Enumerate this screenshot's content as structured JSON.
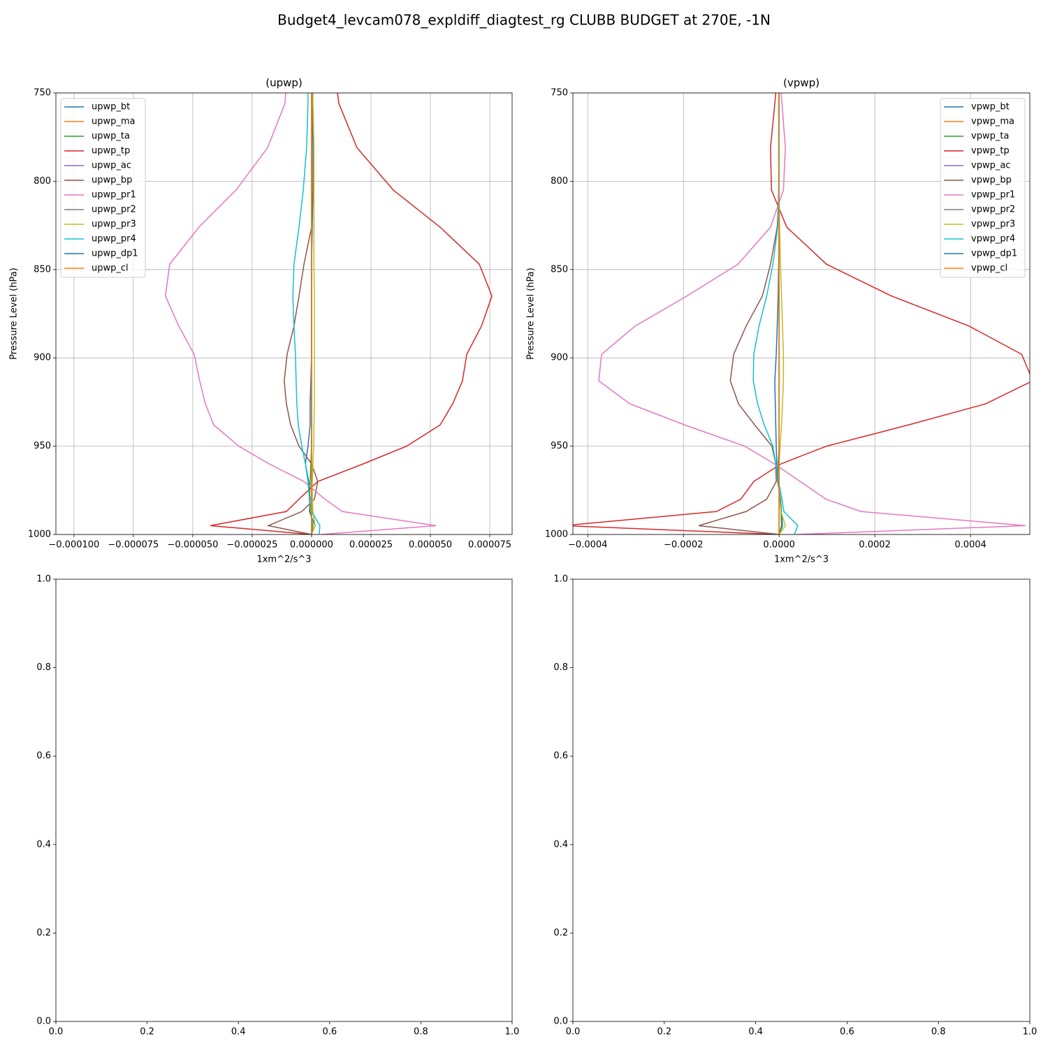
{
  "title": "Budget4_levcam078_expldiff_diagtest_rg CLUBB BUDGET at 270E, -1N",
  "chart_data": [
    {
      "type": "line",
      "title": "(upwp)",
      "xlabel": "1xm^2/s^3",
      "ylabel": "Pressure Level (hPa)",
      "grid": true,
      "legend": "upper left",
      "xlim": [
        -0.0001076,
        8.44e-05
      ],
      "ylim": [
        1000,
        750
      ],
      "xticks": [
        {
          "value": -0.0001,
          "label": "−0.000100"
        },
        {
          "value": -7.5e-05,
          "label": "−0.000075"
        },
        {
          "value": -5e-05,
          "label": "−0.000050"
        },
        {
          "value": -2.5e-05,
          "label": "−0.000025"
        },
        {
          "value": 0,
          "label": "0.000000"
        },
        {
          "value": 2.5e-05,
          "label": "0.000025"
        },
        {
          "value": 5e-05,
          "label": "0.000050"
        },
        {
          "value": 7.5e-05,
          "label": "0.000075"
        }
      ],
      "yticks": [
        750,
        800,
        850,
        900,
        950,
        1000
      ],
      "y": [
        750,
        756,
        781,
        805,
        826,
        847,
        865,
        882,
        898,
        913,
        926,
        938,
        950,
        960,
        970,
        980,
        987,
        995,
        1000
      ],
      "series": [
        {
          "name": "upwp_bt",
          "color": "#1f77b4",
          "values": [
            3e-07,
            3e-07,
            6e-07,
            6e-07,
            3e-07,
            0,
            0,
            0,
            0,
            -3e-07,
            -6e-07,
            -6e-07,
            -1.5e-06,
            -2.6e-06,
            -1.2e-06,
            -6e-07,
            -9e-07,
            1.5e-06,
            0
          ]
        },
        {
          "name": "upwp_ma",
          "color": "#ff7f0e",
          "values": [
            0,
            0,
            0,
            0,
            0,
            0,
            0,
            0,
            0,
            0,
            0,
            0,
            0,
            0,
            0,
            0,
            0,
            0,
            0
          ]
        },
        {
          "name": "upwp_ta",
          "color": "#2ca02c",
          "values": [
            0,
            0,
            0,
            0,
            0,
            0,
            0,
            0,
            0,
            0,
            0,
            0,
            0,
            -3e-07,
            -6e-07,
            -9e-07,
            -6e-07,
            6e-07,
            0
          ]
        },
        {
          "name": "upwp_tp",
          "color": "#d62728",
          "values": [
            1.09e-05,
            1.15e-05,
            1.91e-05,
            3.44e-05,
            5.41e-05,
            7.06e-05,
            7.59e-05,
            7.15e-05,
            6.53e-05,
            6.35e-05,
            5.94e-05,
            5.41e-05,
            4e-05,
            2.18e-05,
            2.6e-06,
            -5.3e-06,
            -1.06e-05,
            -4.26e-05,
            0
          ]
        },
        {
          "name": "upwp_ac",
          "color": "#9467bd",
          "values": [
            0,
            0,
            0,
            0,
            0,
            0,
            0,
            0,
            0,
            0,
            0,
            0,
            0,
            0,
            0,
            0,
            0,
            0,
            0
          ]
        },
        {
          "name": "upwp_bp",
          "color": "#8c564b",
          "values": [
            0,
            3e-07,
            9e-07,
            6e-07,
            0,
            -3.2e-06,
            -5.3e-06,
            -7.4e-06,
            -1.03e-05,
            -1.15e-05,
            -1.06e-05,
            -8.8e-06,
            -5.3e-06,
            0,
            2.6e-06,
            1.2e-06,
            -4.1e-06,
            -1.82e-05,
            0
          ]
        },
        {
          "name": "upwp_pr1",
          "color": "#e377c2",
          "values": [
            -1.09e-05,
            -1.12e-05,
            -1.85e-05,
            -3.18e-05,
            -4.74e-05,
            -5.97e-05,
            -6.15e-05,
            -5.59e-05,
            -4.94e-05,
            -4.71e-05,
            -4.47e-05,
            -4.12e-05,
            -3.06e-05,
            -1.79e-05,
            -3.2e-06,
            5.6e-06,
            1.29e-05,
            5.24e-05,
            4.1e-06
          ]
        },
        {
          "name": "upwp_pr2",
          "color": "#7f7f7f",
          "values": [
            0,
            0,
            0,
            0,
            0,
            0,
            0,
            0,
            0,
            0,
            0,
            0,
            0,
            0,
            0,
            0,
            0,
            0,
            0
          ]
        },
        {
          "name": "upwp_pr3",
          "color": "#bcbd22",
          "values": [
            6e-07,
            6e-07,
            1e-06,
            1e-06,
            1e-06,
            1e-06,
            1.2e-06,
            1.2e-06,
            1.2e-06,
            1.2e-06,
            1.2e-06,
            1e-06,
            9e-07,
            6e-07,
            3e-07,
            3e-07,
            6e-07,
            1.5e-06,
            0
          ]
        },
        {
          "name": "upwp_pr4",
          "color": "#17becf",
          "values": [
            -1.5e-06,
            -1.5e-06,
            -2.1e-06,
            -3.5e-06,
            -5.3e-06,
            -7.4e-06,
            -7.9e-06,
            -7.4e-06,
            -6.8e-06,
            -6.5e-06,
            -6.2e-06,
            -5.6e-06,
            -4.1e-06,
            -2.6e-06,
            -1.5e-06,
            -9e-07,
            0,
            3.5e-06,
            3.2e-06
          ]
        },
        {
          "name": "upwp_dp1",
          "color": "#1f77b4",
          "values": [
            0,
            0,
            0,
            0,
            0,
            0,
            0,
            0,
            0,
            0,
            0,
            0,
            0,
            0,
            0,
            0,
            0,
            0,
            0
          ]
        },
        {
          "name": "upwp_cl",
          "color": "#ff7f0e",
          "values": [
            0,
            0,
            0,
            0,
            0,
            0,
            0,
            0,
            0,
            0,
            0,
            0,
            0,
            0,
            0,
            0,
            0,
            0,
            0
          ]
        }
      ]
    },
    {
      "type": "line",
      "title": "(vpwp)",
      "xlabel": "1xm^2/s^3",
      "ylabel": "Pressure Level (hPa)",
      "grid": true,
      "legend": "upper right",
      "xlim": [
        -0.000431,
        0.000524
      ],
      "ylim": [
        1000,
        750
      ],
      "xticks": [
        {
          "value": -0.0004,
          "label": "−0.0004"
        },
        {
          "value": -0.0002,
          "label": "−0.0002"
        },
        {
          "value": 0,
          "label": "0.0000"
        },
        {
          "value": 0.0002,
          "label": "0.0002"
        },
        {
          "value": 0.0004,
          "label": "0.0004"
        }
      ],
      "yticks": [
        750,
        800,
        850,
        900,
        950,
        1000
      ],
      "y": [
        750,
        756,
        781,
        805,
        826,
        847,
        865,
        882,
        898,
        913,
        926,
        938,
        950,
        960,
        970,
        980,
        987,
        995,
        1000
      ],
      "series": [
        {
          "name": "vpwp_bt",
          "color": "#1f77b4",
          "values": [
            0,
            0,
            0,
            0,
            0,
            -1e-06,
            -2e-06,
            -4e-06,
            -6e-06,
            -9e-06,
            -8e-06,
            -7e-06,
            -6e-06,
            -5e-06,
            -3e-06,
            3e-06,
            5e-06,
            7e-06,
            0
          ]
        },
        {
          "name": "vpwp_ma",
          "color": "#ff7f0e",
          "values": [
            0,
            0,
            0,
            0,
            0,
            0,
            0,
            0,
            0,
            0,
            0,
            0,
            0,
            0,
            0,
            0,
            0,
            0,
            0
          ]
        },
        {
          "name": "vpwp_ta",
          "color": "#2ca02c",
          "values": [
            0,
            0,
            0,
            0,
            0,
            0,
            0,
            0,
            0,
            0,
            0,
            0,
            0,
            -2e-06,
            -2e-06,
            2e-06,
            4e-06,
            5e-06,
            0
          ]
        },
        {
          "name": "vpwp_tp",
          "color": "#d62728",
          "values": [
            -7e-06,
            -9e-06,
            -1.8e-05,
            -1.6e-05,
            1.6e-05,
            9.9e-05,
            0.000235,
            0.000397,
            0.000507,
            0.00053,
            0.000432,
            0.00027,
            9.9e-05,
            4e-06,
            -5.3e-05,
            -8e-05,
            -0.000131,
            -0.00045,
            0
          ]
        },
        {
          "name": "vpwp_ac",
          "color": "#9467bd",
          "values": [
            0,
            0,
            0,
            0,
            0,
            0,
            0,
            0,
            0,
            0,
            0,
            0,
            0,
            0,
            0,
            0,
            0,
            0,
            0
          ]
        },
        {
          "name": "vpwp_bp",
          "color": "#8c564b",
          "values": [
            0,
            0,
            0,
            0,
            -4e-06,
            -1.8e-05,
            -3.5e-05,
            -6.9e-05,
            -9.5e-05,
            -0.000102,
            -8.5e-05,
            -5.1e-05,
            -1.5e-05,
            -7e-06,
            -6e-06,
            -2.6e-05,
            -6.9e-05,
            -0.000168,
            0
          ]
        },
        {
          "name": "vpwp_pr1",
          "color": "#e377c2",
          "values": [
            4e-06,
            6e-06,
            1.3e-05,
            9e-06,
            -1.8e-05,
            -8.6e-05,
            -0.000193,
            -0.000301,
            -0.000371,
            -0.000377,
            -0.000312,
            -0.000197,
            -7.2e-05,
            -1e-05,
            4.4e-05,
            9.8e-05,
            0.000171,
            0.000515,
            3.6e-05
          ]
        },
        {
          "name": "vpwp_pr2",
          "color": "#7f7f7f",
          "values": [
            0,
            0,
            0,
            0,
            0,
            0,
            0,
            0,
            0,
            0,
            0,
            0,
            0,
            0,
            0,
            0,
            0,
            0,
            0
          ]
        },
        {
          "name": "vpwp_pr3",
          "color": "#bcbd22",
          "values": [
            0,
            0,
            0,
            0,
            1e-06,
            3e-06,
            5e-06,
            7e-06,
            9e-06,
            9e-06,
            7e-06,
            5e-06,
            2e-06,
            0,
            -1e-06,
            1e-06,
            4e-06,
            1.3e-05,
            0
          ]
        },
        {
          "name": "vpwp_pr4",
          "color": "#17becf",
          "values": [
            -1e-06,
            -1e-06,
            -1e-06,
            -1e-06,
            -3e-06,
            -1.3e-05,
            -2.6e-05,
            -4.2e-05,
            -5.3e-05,
            -5.4e-05,
            -4.5e-05,
            -3.1e-05,
            -1.3e-05,
            -7e-06,
            -1e-06,
            6e-06,
            1e-05,
            3.9e-05,
            3.2e-05
          ]
        },
        {
          "name": "vpwp_dp1",
          "color": "#1f77b4",
          "values": [
            0,
            0,
            0,
            0,
            0,
            0,
            0,
            0,
            0,
            0,
            0,
            0,
            0,
            0,
            0,
            0,
            0,
            0,
            0
          ]
        },
        {
          "name": "vpwp_cl",
          "color": "#ff7f0e",
          "values": [
            0,
            0,
            0,
            0,
            0,
            0,
            0,
            0,
            0,
            0,
            0,
            0,
            0,
            0,
            0,
            0,
            0,
            0,
            0
          ]
        }
      ]
    },
    {
      "type": "line",
      "grid": false,
      "xlim": [
        0,
        1
      ],
      "ylim": [
        0,
        1
      ],
      "xticks": [
        {
          "value": 0,
          "label": "0.0"
        },
        {
          "value": 0.2,
          "label": "0.2"
        },
        {
          "value": 0.4,
          "label": "0.4"
        },
        {
          "value": 0.6,
          "label": "0.6"
        },
        {
          "value": 0.8,
          "label": "0.8"
        },
        {
          "value": 1,
          "label": "1.0"
        }
      ],
      "yticks": [
        {
          "value": 0,
          "label": "0.0"
        },
        {
          "value": 0.2,
          "label": "0.2"
        },
        {
          "value": 0.4,
          "label": "0.4"
        },
        {
          "value": 0.6,
          "label": "0.6"
        },
        {
          "value": 0.8,
          "label": "0.8"
        },
        {
          "value": 1,
          "label": "1.0"
        }
      ]
    },
    {
      "type": "line",
      "grid": false,
      "xlim": [
        0,
        1
      ],
      "ylim": [
        0,
        1
      ],
      "xticks": [
        {
          "value": 0,
          "label": "0.0"
        },
        {
          "value": 0.2,
          "label": "0.2"
        },
        {
          "value": 0.4,
          "label": "0.4"
        },
        {
          "value": 0.6,
          "label": "0.6"
        },
        {
          "value": 0.8,
          "label": "0.8"
        },
        {
          "value": 1,
          "label": "1.0"
        }
      ],
      "yticks": [
        {
          "value": 0,
          "label": "0.0"
        },
        {
          "value": 0.2,
          "label": "0.2"
        },
        {
          "value": 0.4,
          "label": "0.4"
        },
        {
          "value": 0.6,
          "label": "0.6"
        },
        {
          "value": 0.8,
          "label": "0.8"
        },
        {
          "value": 1,
          "label": "1.0"
        }
      ]
    }
  ]
}
